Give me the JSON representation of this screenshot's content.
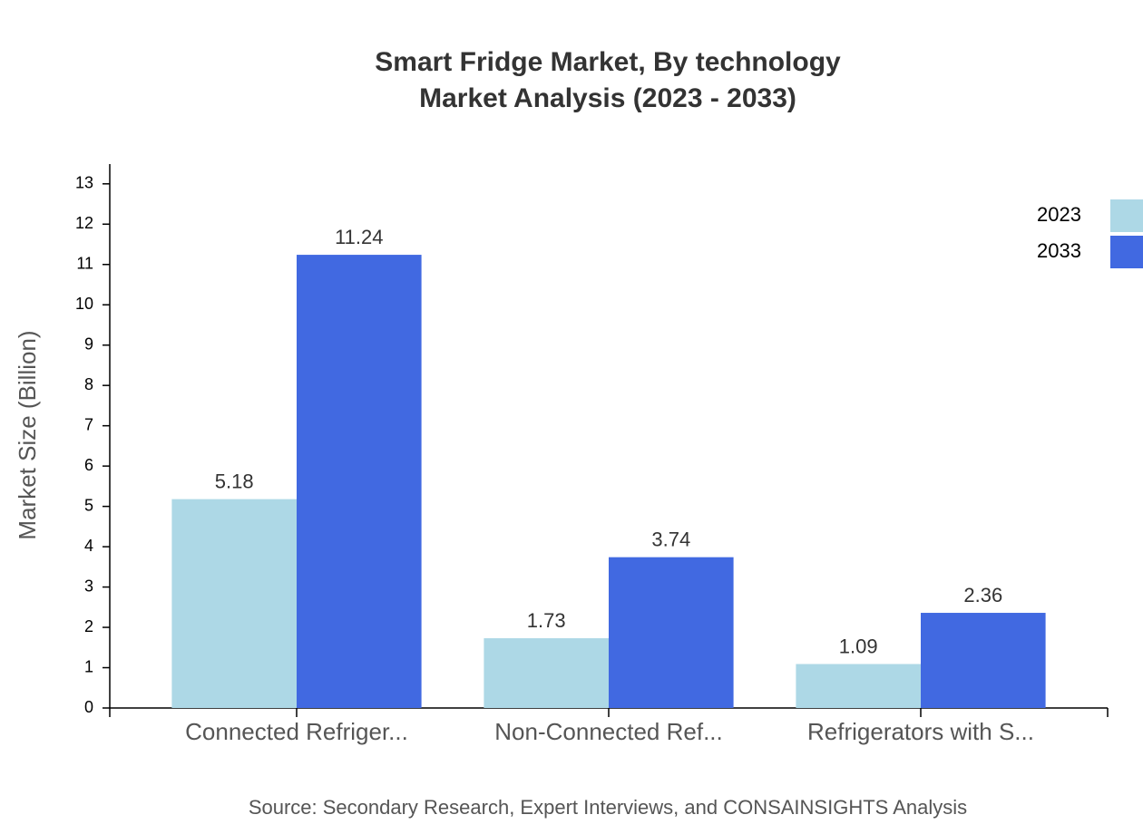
{
  "chart_data": {
    "type": "bar",
    "title": [
      "Smart Fridge Market, By technology",
      "Market Analysis (2023 - 2033)"
    ],
    "y_label": "Market Size (Billion)",
    "source": "Source: Secondary Research, Expert Interviews, and CONSAINSIGHTS Analysis",
    "categories": [
      "Connected Refriger...",
      "Non-Connected Ref...",
      "Refrigerators with S..."
    ],
    "series": [
      {
        "name": "2023",
        "color": "#add8e6",
        "values": [
          5.18,
          1.73,
          1.09
        ]
      },
      {
        "name": "2033",
        "color": "#4169e1",
        "values": [
          11.24,
          3.74,
          2.36
        ]
      }
    ],
    "ylim": [
      0,
      13.49
    ],
    "yticks": [
      0,
      1,
      2,
      3,
      4,
      5,
      6,
      7,
      8,
      9,
      10,
      11,
      12,
      13
    ],
    "legend": "top-right"
  }
}
